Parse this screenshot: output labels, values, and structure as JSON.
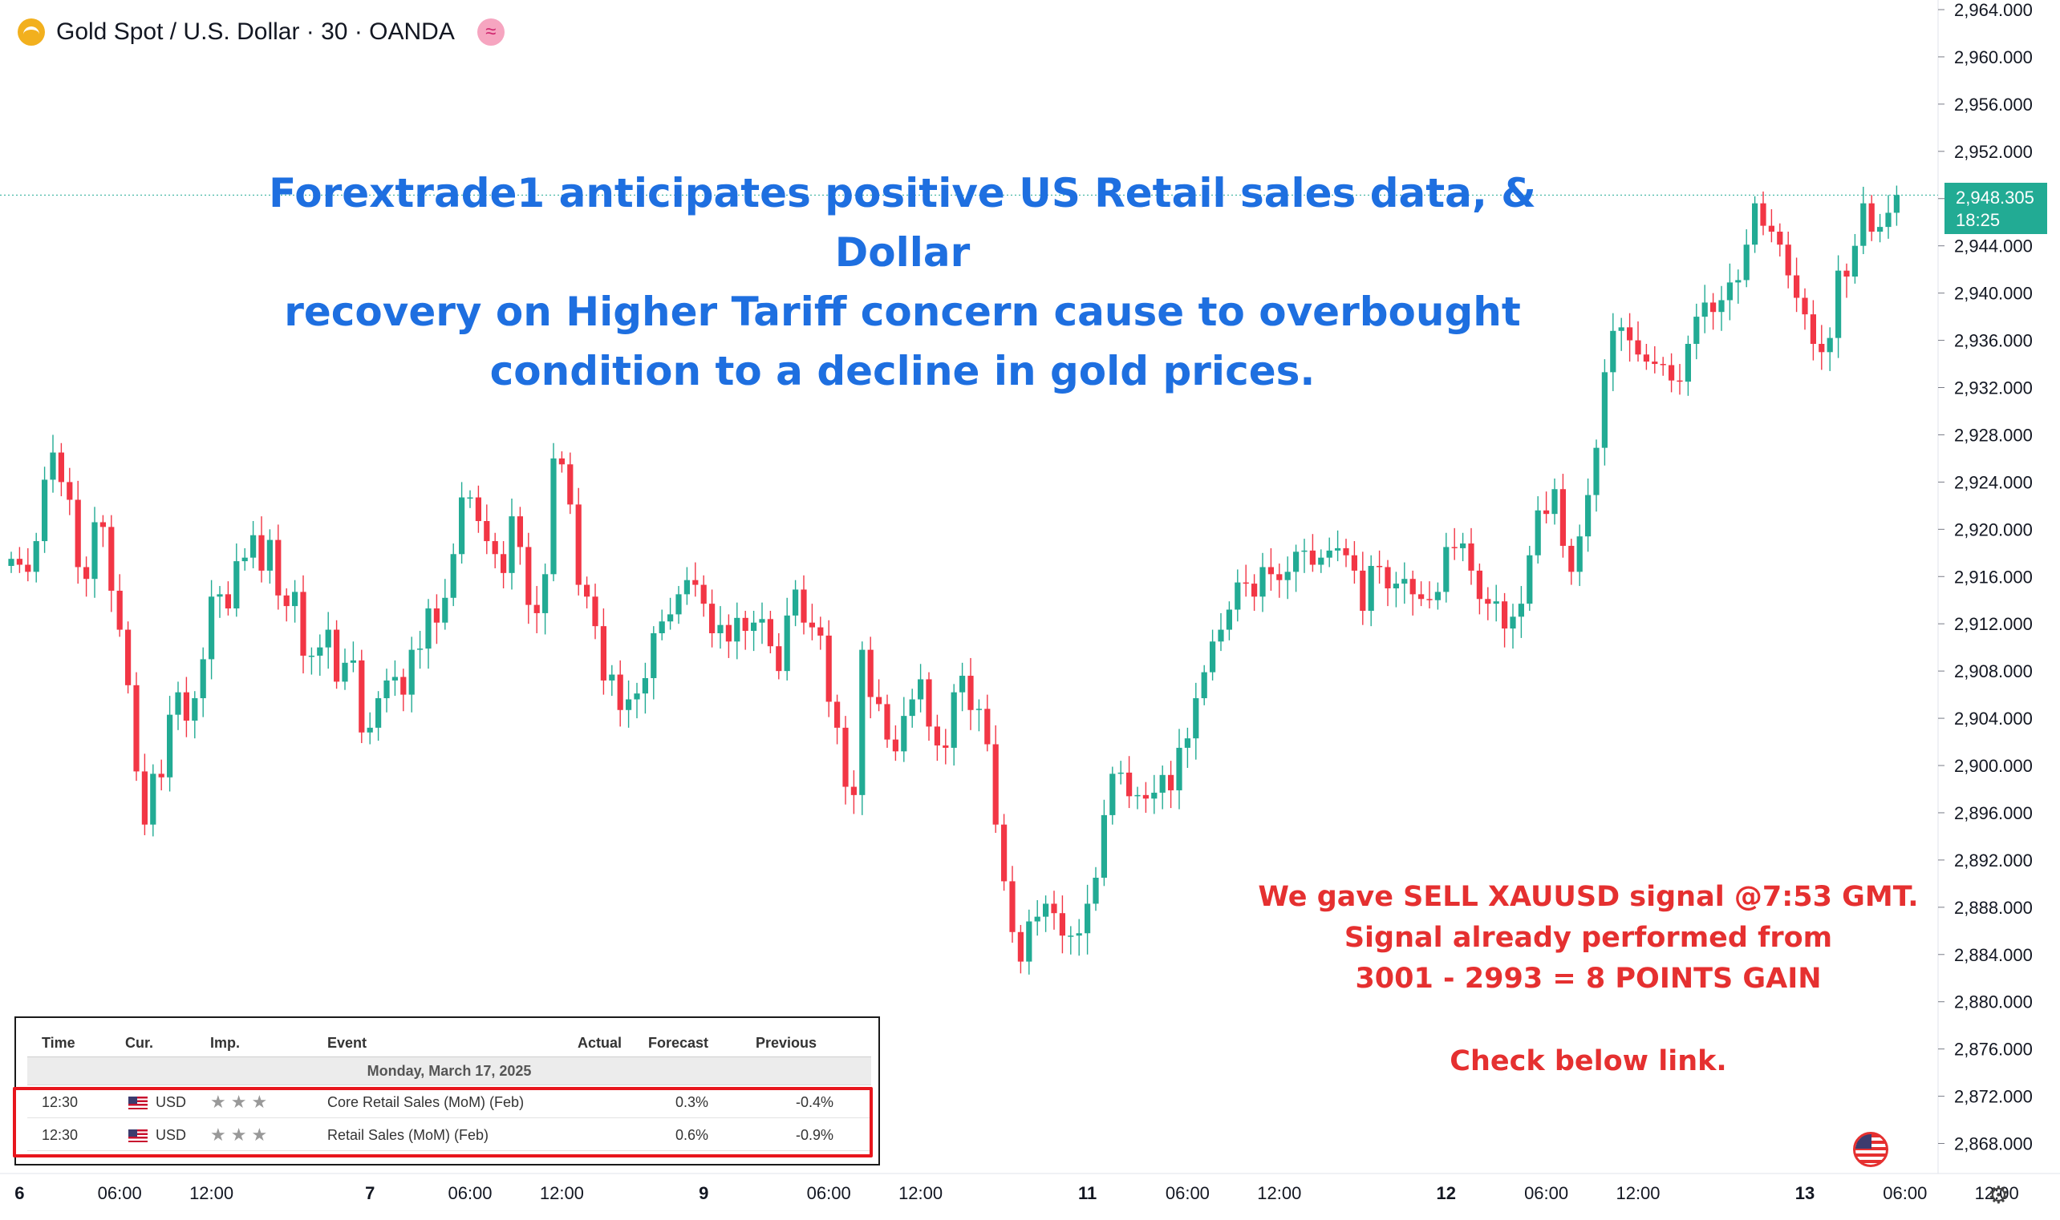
{
  "header": {
    "title": "Gold Spot / U.S. Dollar · 30 · OANDA",
    "logo_icon": "gold-coin-icon",
    "badge_icon": "wave-icon",
    "badge_glyph": "≈"
  },
  "headline": {
    "lines": [
      "Forextrade1 anticipates positive US Retail sales data, & Dollar",
      "recovery on Higher Tariff concern cause to overbought",
      "condition to a decline in gold prices."
    ]
  },
  "signal_note": {
    "lines": [
      "We gave SELL XAUUSD signal @7:53 GMT.",
      "Signal already performed from",
      "3001 - 2993 = 8 POINTS GAIN"
    ],
    "link_line": "Check below link."
  },
  "last_price": {
    "price": "2,948.305",
    "countdown": "18:25",
    "color": "#22ab94"
  },
  "calendar": {
    "headers": {
      "time": "Time",
      "cur": "Cur.",
      "imp": "Imp.",
      "event": "Event",
      "actual": "Actual",
      "forecast": "Forecast",
      "previous": "Previous"
    },
    "date": "Monday, March 17, 2025",
    "rows": [
      {
        "time": "12:30",
        "currency": "USD",
        "stars": "★★★",
        "event": "Core Retail Sales (MoM) (Feb)",
        "actual": "",
        "forecast": "0.3%",
        "previous": "-0.4%"
      },
      {
        "time": "12:30",
        "currency": "USD",
        "stars": "★★★",
        "event": "Retail Sales (MoM) (Feb)",
        "actual": "",
        "forecast": "0.6%",
        "previous": "-0.9%"
      }
    ]
  },
  "icons": {
    "settings": "gear-icon",
    "settings_glyph": "⚙",
    "flag": "us-flag-icon"
  },
  "colors": {
    "up": "#22ab94",
    "down": "#f23645",
    "headline": "#1e6fe0",
    "signal": "#e53030"
  },
  "chart_data": {
    "type": "candlestick",
    "title": "Gold Spot / U.S. Dollar · 30 · OANDA",
    "ylim": [
      2866,
      2964
    ],
    "y_ticks": [
      "2,964.000",
      "2,960.000",
      "2,956.000",
      "2,952.000",
      "2,948.000",
      "2,944.000",
      "2,940.000",
      "2,936.000",
      "2,932.000",
      "2,928.000",
      "2,924.000",
      "2,920.000",
      "2,916.000",
      "2,912.000",
      "2,908.000",
      "2,904.000",
      "2,900.000",
      "2,896.000",
      "2,892.000",
      "2,888.000",
      "2,884.000",
      "2,880.000",
      "2,876.000",
      "2,872.000",
      "2,868.000"
    ],
    "x_ticks": [
      {
        "label": "6",
        "i": 1,
        "bold": true
      },
      {
        "label": "06:00",
        "i": 13
      },
      {
        "label": "12:00",
        "i": 24
      },
      {
        "label": "7",
        "i": 43,
        "bold": true
      },
      {
        "label": "06:00",
        "i": 55
      },
      {
        "label": "12:00",
        "i": 66
      },
      {
        "label": "9",
        "i": 83,
        "bold": true
      },
      {
        "label": "06:00",
        "i": 98
      },
      {
        "label": "12:00",
        "i": 109
      },
      {
        "label": "11",
        "i": 129,
        "bold": true
      },
      {
        "label": "06:00",
        "i": 141
      },
      {
        "label": "12:00",
        "i": 152
      },
      {
        "label": "12",
        "i": 172,
        "bold": true
      },
      {
        "label": "06:00",
        "i": 184
      },
      {
        "label": "12:00",
        "i": 195
      },
      {
        "label": "13",
        "i": 215,
        "bold": true
      },
      {
        "label": "06:00",
        "i": 227
      },
      {
        "label": "12:00",
        "i": 238
      }
    ],
    "closes": [
      2917.5,
      2917.0,
      2916.4,
      2919.0,
      2924.2,
      2926.5,
      2924.0,
      2922.5,
      2916.8,
      2915.8,
      2920.6,
      2920.2,
      2914.8,
      2911.5,
      2906.8,
      2899.5,
      2895.0,
      2899.3,
      2899.0,
      2904.3,
      2906.2,
      2903.8,
      2905.7,
      2909.0,
      2914.3,
      2914.5,
      2913.3,
      2917.3,
      2917.6,
      2919.5,
      2916.5,
      2919.1,
      2914.4,
      2913.5,
      2914.7,
      2909.3,
      2909.3,
      2910.0,
      2911.5,
      2907.1,
      2908.7,
      2908.9,
      2902.8,
      2903.2,
      2905.7,
      2907.2,
      2907.5,
      2906.0,
      2909.8,
      2909.9,
      2913.3,
      2912.1,
      2914.2,
      2917.9,
      2922.7,
      2922.7,
      2920.7,
      2919.0,
      2917.9,
      2916.3,
      2921.1,
      2918.5,
      2913.6,
      2912.9,
      2916.2,
      2926.0,
      2925.5,
      2922.1,
      2915.3,
      2914.3,
      2911.8,
      2907.2,
      2907.7,
      2904.7,
      2905.6,
      2906.1,
      2907.4,
      2911.2,
      2912.2,
      2912.8,
      2914.5,
      2915.7,
      2915.3,
      2913.7,
      2911.2,
      2911.9,
      2910.5,
      2912.5,
      2911.4,
      2912.1,
      2912.4,
      2910.1,
      2908.0,
      2912.7,
      2914.9,
      2912.1,
      2911.7,
      2911.0,
      2905.4,
      2903.2,
      2898.2,
      2897.5,
      2909.8,
      2905.8,
      2905.2,
      2902.2,
      2901.2,
      2904.2,
      2905.6,
      2907.3,
      2903.3,
      2901.7,
      2901.5,
      2906.2,
      2907.6,
      2904.7,
      2904.8,
      2901.8,
      2895.0,
      2890.2,
      2885.9,
      2883.4,
      2886.8,
      2887.2,
      2888.3,
      2887.5,
      2885.6,
      2885.6,
      2885.8,
      2888.3,
      2890.5,
      2895.8,
      2899.3,
      2899.4,
      2897.4,
      2897.5,
      2897.2,
      2897.7,
      2899.2,
      2897.9,
      2901.5,
      2902.3,
      2905.7,
      2907.9,
      2910.5,
      2911.5,
      2913.2,
      2915.5,
      2915.4,
      2914.3,
      2916.8,
      2916.2,
      2915.7,
      2916.4,
      2918.1,
      2918.2,
      2917.0,
      2917.6,
      2918.2,
      2918.4,
      2917.8,
      2916.5,
      2913.1,
      2916.9,
      2916.8,
      2915.0,
      2915.4,
      2915.8,
      2914.5,
      2914.1,
      2914.0,
      2914.7,
      2918.5,
      2918.4,
      2918.8,
      2916.5,
      2914.1,
      2913.7,
      2913.9,
      2911.6,
      2912.6,
      2913.7,
      2917.8,
      2921.6,
      2921.3,
      2923.4,
      2918.6,
      2916.4,
      2919.4,
      2922.9,
      2926.9,
      2933.3,
      2936.8,
      2937.1,
      2936.0,
      2934.8,
      2934.2,
      2934.0,
      2933.9,
      2932.6,
      2932.5,
      2935.7,
      2938.0,
      2939.2,
      2938.4,
      2939.4,
      2940.9,
      2941.1,
      2944.1,
      2947.6,
      2945.7,
      2945.2,
      2944.1,
      2941.5,
      2939.6,
      2938.2,
      2935.7,
      2935.0,
      2936.2,
      2941.9,
      2941.4,
      2944.0,
      2947.6,
      2945.2,
      2945.6,
      2946.8,
      2948.3
    ]
  }
}
